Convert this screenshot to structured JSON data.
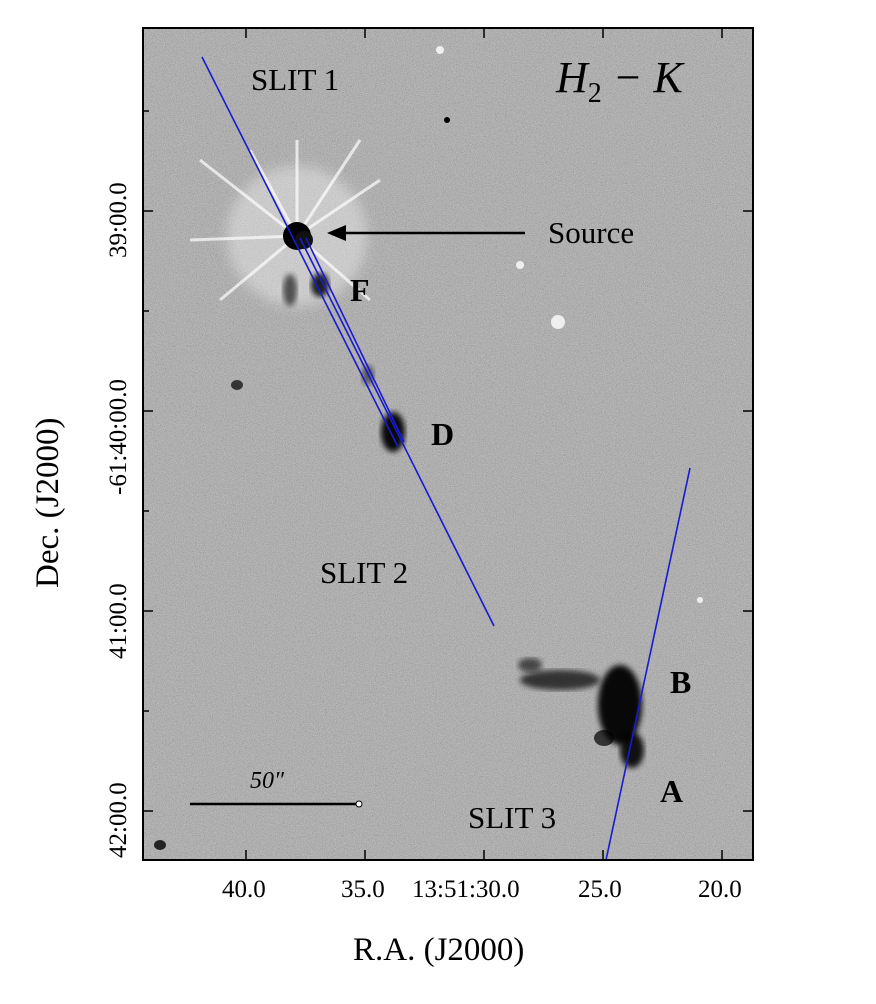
{
  "figure": {
    "band_label_main": "H",
    "band_label_sub": "2",
    "band_label_tail": " − K",
    "source_label": "Source",
    "slits": [
      "SLIT 1",
      "SLIT 2",
      "SLIT 3"
    ],
    "knots": [
      "F",
      "D",
      "B",
      "A"
    ],
    "scale_bar_label": "50″",
    "x_axis": {
      "title": "R.A. (J2000)",
      "ticks": [
        "40.0",
        "35.0",
        "13:51:30.0",
        "25.0",
        "20.0"
      ]
    },
    "y_axis": {
      "title": "Dec. (J2000)",
      "ticks": [
        "39:00.0",
        "-61:40:00.0",
        "41:00.0",
        "42:00.0"
      ]
    },
    "colors": {
      "slit": "#1a1ad0",
      "image_background": "#a8a8a8",
      "emission": "#000000"
    }
  }
}
